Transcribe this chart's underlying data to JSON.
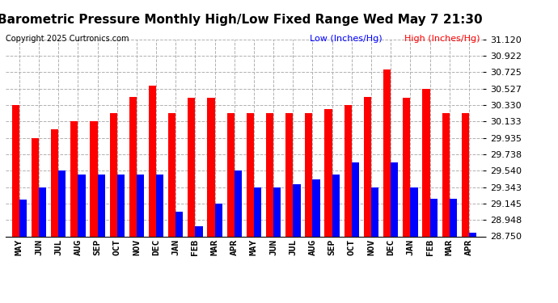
{
  "title": "Barometric Pressure Monthly High/Low Fixed Range Wed May 7 21:30",
  "copyright": "Copyright 2025 Curtronics.com",
  "legend_low": "Low (Inches/Hg)",
  "legend_high": "High (Inches/Hg)",
  "months": [
    "MAY",
    "JUN",
    "JUL",
    "AUG",
    "SEP",
    "OCT",
    "NOV",
    "DEC",
    "JAN",
    "FEB",
    "MAR",
    "APR",
    "MAY",
    "JUN",
    "JUL",
    "AUG",
    "SEP",
    "OCT",
    "NOV",
    "DEC",
    "JAN",
    "FEB",
    "MAR",
    "APR"
  ],
  "highs": [
    30.33,
    29.935,
    30.035,
    30.133,
    30.133,
    30.23,
    30.43,
    30.56,
    30.23,
    30.42,
    30.42,
    30.23,
    30.23,
    30.23,
    30.23,
    30.23,
    30.28,
    30.33,
    30.43,
    30.76,
    30.42,
    30.527,
    30.23,
    30.23
  ],
  "lows": [
    29.19,
    29.343,
    29.54,
    29.49,
    29.49,
    29.49,
    29.49,
    29.49,
    29.05,
    28.87,
    29.145,
    29.54,
    29.343,
    29.343,
    29.38,
    29.44,
    29.49,
    29.64,
    29.343,
    29.64,
    29.343,
    29.2,
    29.2,
    28.79
  ],
  "ylim_min": 28.75,
  "ylim_max": 31.12,
  "yticks": [
    28.75,
    28.948,
    29.145,
    29.343,
    29.54,
    29.738,
    29.935,
    30.133,
    30.33,
    30.527,
    30.725,
    30.922,
    31.12
  ],
  "bar_color_high": "#ff0000",
  "bar_color_low": "#0000ff",
  "background_color": "#ffffff",
  "grid_color": "#b0b0b0",
  "title_fontsize": 11,
  "tick_fontsize": 8,
  "bar_width": 0.38
}
